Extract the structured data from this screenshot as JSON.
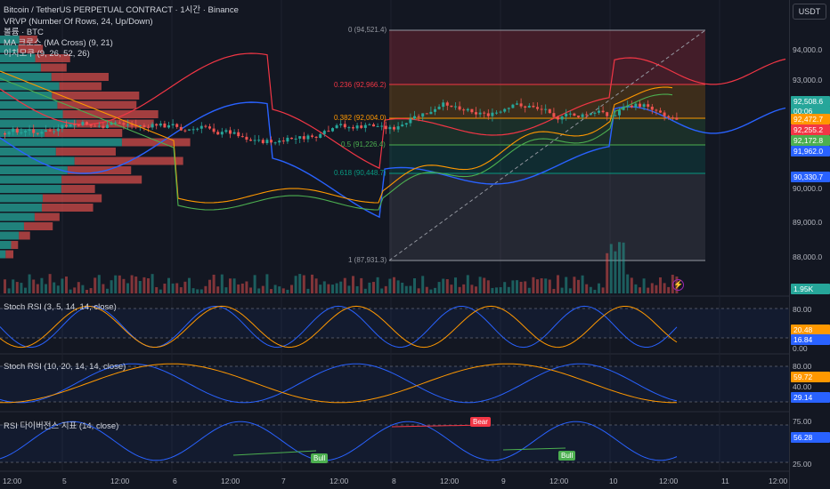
{
  "header": {
    "title": "Bitcoin / TetherUS PERPETUAL CONTRACT · 1시간 · Binance",
    "indicators": [
      "VRVP (Number Of Rows, 24, Up/Down)",
      "볼륨 · BTC",
      "MA 크로스 (MA Cross) (9, 21)",
      "이치모쿠 (9, 26, 52, 26)"
    ]
  },
  "currency_button": "USDT",
  "price_axis": {
    "ticks": [
      "94,000.0",
      "93,000.0",
      "90,000.0",
      "89,000.0",
      "88,000.0"
    ]
  },
  "price_tags": [
    {
      "text": "92,508.6",
      "color": "#26a69a"
    },
    {
      "text": "00:06",
      "color": "#26a69a"
    },
    {
      "text": "92,472.7",
      "color": "#ff9800"
    },
    {
      "text": "92,255.2",
      "color": "#f23645"
    },
    {
      "text": "92,172.8",
      "color": "#4caf50"
    },
    {
      "text": "91,962.0",
      "color": "#2962ff"
    },
    {
      "text": "90,330.7",
      "color": "#2962ff"
    }
  ],
  "volume_tag": "1.95K",
  "fib_levels": [
    {
      "label": "0 (94,521.4)",
      "color": "#9598a1"
    },
    {
      "label": "0.236 (92,966.2)",
      "color": "#f23645"
    },
    {
      "label": "0.382 (92,004.0)",
      "color": "#ff9800"
    },
    {
      "label": "0.5 (91,226.4)",
      "color": "#4caf50"
    },
    {
      "label": "0.618 (90,448.7)",
      "color": "#089981"
    },
    {
      "label": "1 (87,931.3)",
      "color": "#9598a1"
    }
  ],
  "panes": [
    {
      "title": "Stoch RSI (3, 5, 14, 14, close)",
      "ticks": [
        "80.00",
        "0.00"
      ],
      "tags": [
        {
          "text": "20.48",
          "color": "#ff9800"
        },
        {
          "text": "16.84",
          "color": "#2962ff"
        }
      ]
    },
    {
      "title": "Stoch RSI (10, 20, 14, 14, close)",
      "ticks": [
        "80.00",
        "40.00"
      ],
      "tags": [
        {
          "text": "59.72",
          "color": "#ff9800"
        },
        {
          "text": "29.14",
          "color": "#2962ff"
        }
      ]
    },
    {
      "title": "RSI 다이버전스 지표 (14, close)",
      "ticks": [
        "75.00",
        "25.00"
      ],
      "tags": [
        {
          "text": "56.28",
          "color": "#2962ff"
        }
      ]
    }
  ],
  "divergence_labels": {
    "bear": "Bear",
    "bull_1": "Bull",
    "bull_2": "Bull"
  },
  "time_axis": [
    "12:00",
    "5",
    "12:00",
    "6",
    "12:00",
    "7",
    "12:00",
    "8",
    "12:00",
    "9",
    "12:00",
    "10",
    "12:00",
    "11",
    "12:00"
  ],
  "colors": {
    "up": "#26a69a",
    "down": "#ef5350",
    "background": "#131722",
    "grid": "#1e222d"
  }
}
